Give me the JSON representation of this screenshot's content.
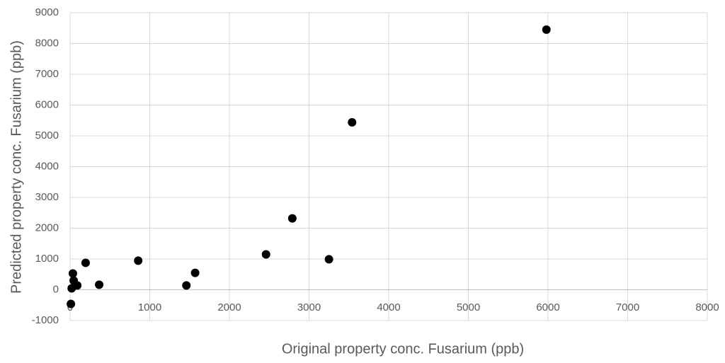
{
  "chart_data": {
    "type": "scatter",
    "x_label": "Original property conc. Fusarium (ppb)",
    "y_label": "Predicted property conc. Fusarium (ppb)",
    "series": [
      {
        "color": "#000000",
        "x": [
          5980,
          3540,
          2790,
          2460,
          3250,
          1570,
          1460,
          855,
          365,
          195,
          90,
          45,
          35,
          20,
          10
        ],
        "values": [
          8450,
          5440,
          2320,
          1150,
          990,
          550,
          140,
          945,
          165,
          875,
          140,
          300,
          530,
          45,
          -460
        ]
      }
    ],
    "xlim": [
      0,
      8000
    ],
    "xticks": [
      0,
      1000,
      2000,
      3000,
      4000,
      5000,
      6000,
      7000,
      8000
    ],
    "ylim": [
      -1000,
      9000
    ],
    "yticks": [
      -1000,
      0,
      1000,
      2000,
      3000,
      4000,
      5000,
      6000,
      7000,
      8000,
      9000
    ],
    "grid": true
  }
}
